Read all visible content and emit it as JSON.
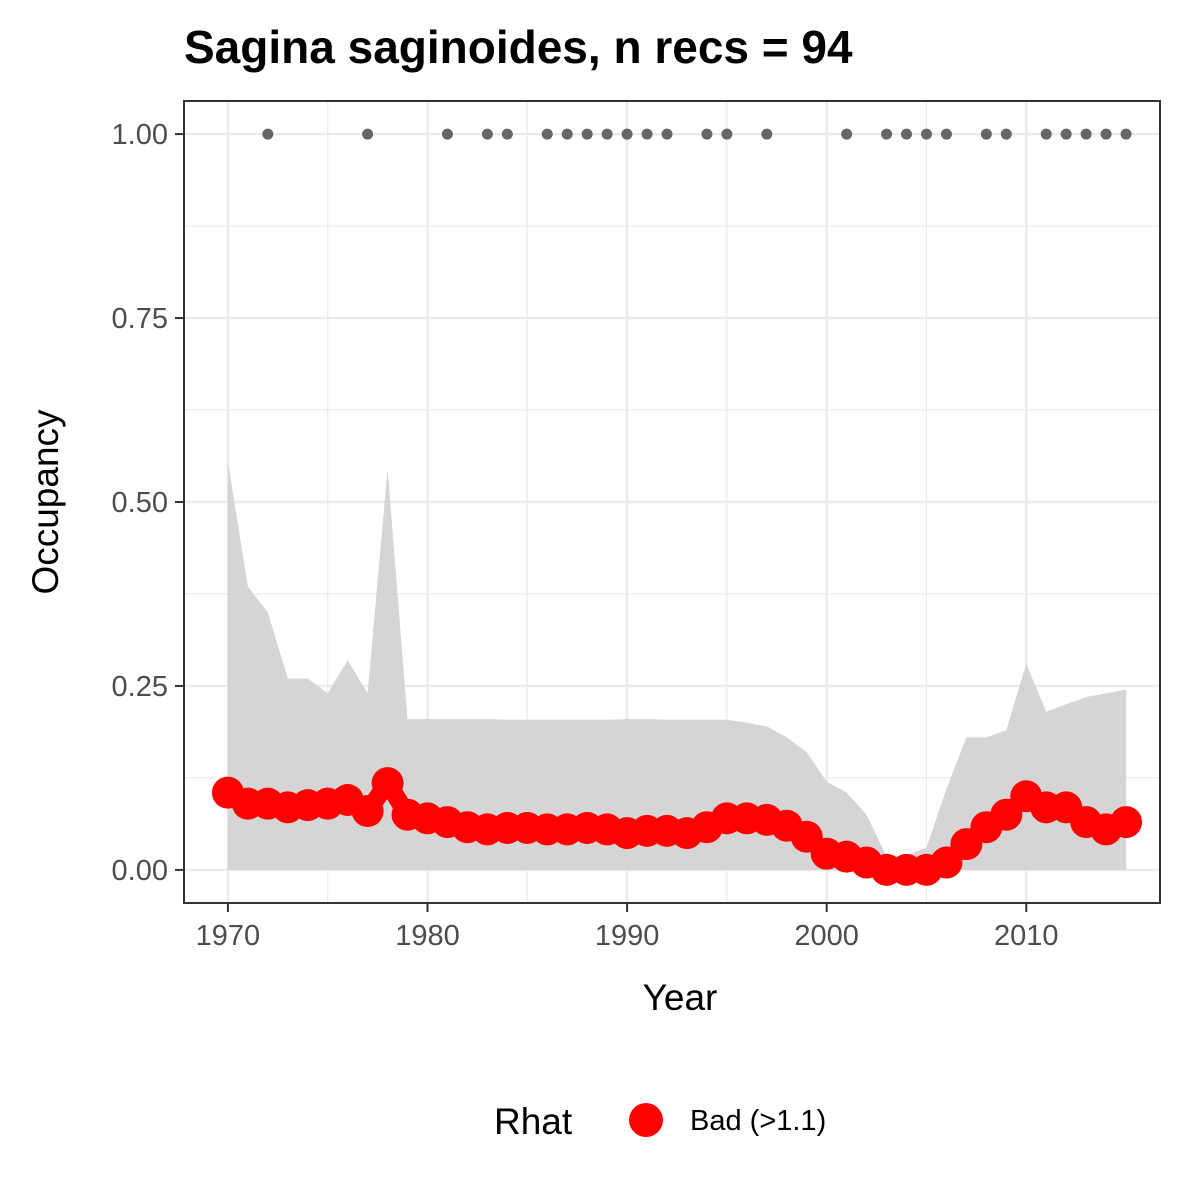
{
  "chart_data": {
    "type": "line",
    "title": "Sagina saginoides, n recs = 94",
    "xlabel": "Year",
    "ylabel": "Occupancy",
    "xlim": [
      1967.8,
      2016.7
    ],
    "ylim": [
      -0.045,
      1.045
    ],
    "x_ticks": [
      1970,
      1980,
      1990,
      2000,
      2010
    ],
    "x_tick_labels": [
      "1970",
      "1980",
      "1990",
      "2000",
      "2010"
    ],
    "y_ticks": [
      0,
      0.25,
      0.5,
      0.75,
      1.0
    ],
    "y_tick_labels": [
      "0.00",
      "0.25",
      "0.50",
      "0.75",
      "1.00"
    ],
    "grid": true,
    "legend": {
      "position": "bottom",
      "title": "Rhat",
      "entries": [
        {
          "label": "Bad (>1.1)",
          "color": "#ff0000"
        }
      ]
    },
    "colors": {
      "line": "#ff0000",
      "ribbon": "#d3d3d3",
      "records": "#666666",
      "grid": "#ebebeb",
      "panel_border": "#333333"
    },
    "series": [
      {
        "name": "Occupancy",
        "x": [
          1970,
          1971,
          1972,
          1973,
          1974,
          1975,
          1976,
          1977,
          1978,
          1979,
          1980,
          1981,
          1982,
          1983,
          1984,
          1985,
          1986,
          1987,
          1988,
          1989,
          1990,
          1991,
          1992,
          1993,
          1994,
          1995,
          1996,
          1997,
          1998,
          1999,
          2000,
          2001,
          2002,
          2003,
          2004,
          2005,
          2006,
          2007,
          2008,
          2009,
          2010,
          2011,
          2012,
          2013,
          2014,
          2015
        ],
        "values": [
          0.105,
          0.09,
          0.09,
          0.085,
          0.088,
          0.09,
          0.095,
          0.08,
          0.118,
          0.075,
          0.07,
          0.065,
          0.058,
          0.055,
          0.057,
          0.057,
          0.055,
          0.055,
          0.057,
          0.055,
          0.05,
          0.053,
          0.053,
          0.05,
          0.058,
          0.07,
          0.07,
          0.068,
          0.06,
          0.045,
          0.022,
          0.018,
          0.01,
          0.0,
          0.0,
          0.0,
          0.01,
          0.035,
          0.058,
          0.075,
          0.1,
          0.085,
          0.085,
          0.065,
          0.055,
          0.065
        ],
        "lower": [
          0.0,
          0.0,
          0.0,
          0.0,
          0.0,
          0.0,
          0.0,
          0.0,
          0.0,
          0.0,
          0.0,
          0.0,
          0.0,
          0.0,
          0.0,
          0.0,
          0.0,
          0.0,
          0.0,
          0.0,
          0.0,
          0.0,
          0.0,
          0.0,
          0.0,
          0.0,
          0.0,
          0.0,
          0.0,
          0.0,
          0.0,
          0.0,
          0.0,
          0.0,
          0.0,
          0.0,
          0.0,
          0.0,
          0.0,
          0.0,
          0.0,
          0.0,
          0.0,
          0.0,
          0.0,
          0.0
        ],
        "upper": [
          0.555,
          0.385,
          0.35,
          0.26,
          0.26,
          0.24,
          0.285,
          0.24,
          0.545,
          0.205,
          0.205,
          0.205,
          0.205,
          0.205,
          0.204,
          0.204,
          0.204,
          0.204,
          0.204,
          0.204,
          0.205,
          0.205,
          0.204,
          0.204,
          0.204,
          0.204,
          0.2,
          0.195,
          0.18,
          0.16,
          0.12,
          0.105,
          0.075,
          0.018,
          0.02,
          0.03,
          0.11,
          0.18,
          0.18,
          0.19,
          0.28,
          0.215,
          0.225,
          0.235,
          0.24,
          0.245
        ]
      }
    ],
    "records": {
      "x": [
        1972,
        1977,
        1981,
        1983,
        1984,
        1986,
        1987,
        1988,
        1989,
        1990,
        1991,
        1992,
        1994,
        1995,
        1997,
        2001,
        2003,
        2004,
        2005,
        2006,
        2008,
        2009,
        2011,
        2012,
        2013,
        2014,
        2015
      ],
      "values": [
        1,
        1,
        1,
        1,
        1,
        1,
        1,
        1,
        1,
        1,
        1,
        1,
        1,
        1,
        1,
        1,
        1,
        1,
        1,
        1,
        1,
        1,
        1,
        1,
        1,
        1,
        1
      ]
    }
  }
}
